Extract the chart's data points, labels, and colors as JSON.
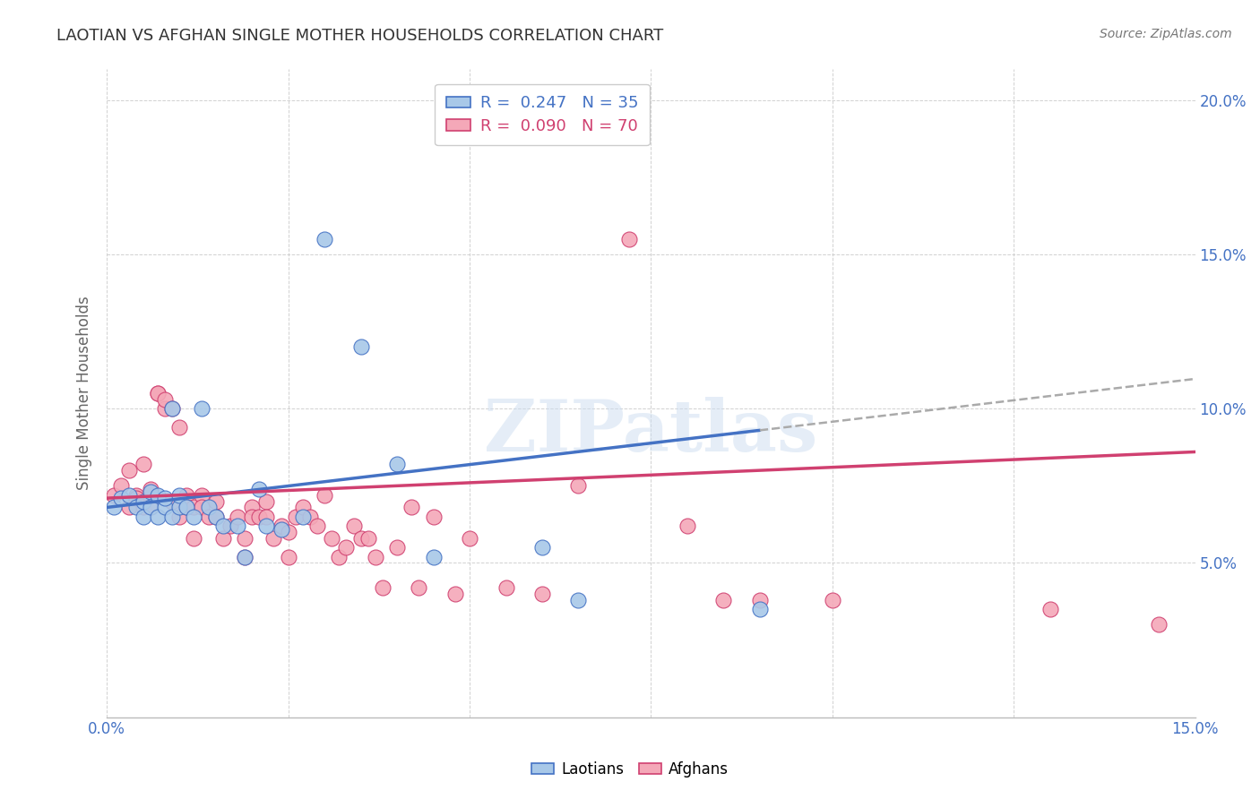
{
  "title": "LAOTIAN VS AFGHAN SINGLE MOTHER HOUSEHOLDS CORRELATION CHART",
  "source": "Source: ZipAtlas.com",
  "ylabel": "Single Mother Households",
  "xlim": [
    0.0,
    0.15
  ],
  "ylim": [
    0.0,
    0.21
  ],
  "legend_blue_R": "0.247",
  "legend_blue_N": "35",
  "legend_pink_R": "0.090",
  "legend_pink_N": "70",
  "watermark": "ZIPatlas",
  "blue_color": "#a8c8e8",
  "pink_color": "#f4a8b8",
  "blue_line_color": "#4472c4",
  "pink_line_color": "#d04070",
  "blue_scatter": [
    [
      0.001,
      0.068
    ],
    [
      0.002,
      0.071
    ],
    [
      0.003,
      0.072
    ],
    [
      0.004,
      0.068
    ],
    [
      0.005,
      0.07
    ],
    [
      0.005,
      0.065
    ],
    [
      0.006,
      0.073
    ],
    [
      0.006,
      0.068
    ],
    [
      0.007,
      0.072
    ],
    [
      0.007,
      0.065
    ],
    [
      0.008,
      0.068
    ],
    [
      0.008,
      0.071
    ],
    [
      0.009,
      0.1
    ],
    [
      0.009,
      0.065
    ],
    [
      0.01,
      0.068
    ],
    [
      0.01,
      0.072
    ],
    [
      0.011,
      0.068
    ],
    [
      0.012,
      0.065
    ],
    [
      0.013,
      0.1
    ],
    [
      0.014,
      0.068
    ],
    [
      0.015,
      0.065
    ],
    [
      0.016,
      0.062
    ],
    [
      0.018,
      0.062
    ],
    [
      0.019,
      0.052
    ],
    [
      0.021,
      0.074
    ],
    [
      0.022,
      0.062
    ],
    [
      0.024,
      0.061
    ],
    [
      0.027,
      0.065
    ],
    [
      0.03,
      0.155
    ],
    [
      0.035,
      0.12
    ],
    [
      0.04,
      0.082
    ],
    [
      0.045,
      0.052
    ],
    [
      0.06,
      0.055
    ],
    [
      0.065,
      0.038
    ],
    [
      0.09,
      0.035
    ]
  ],
  "pink_scatter": [
    [
      0.001,
      0.072
    ],
    [
      0.002,
      0.075
    ],
    [
      0.003,
      0.068
    ],
    [
      0.003,
      0.08
    ],
    [
      0.004,
      0.072
    ],
    [
      0.004,
      0.071
    ],
    [
      0.005,
      0.068
    ],
    [
      0.005,
      0.082
    ],
    [
      0.006,
      0.074
    ],
    [
      0.006,
      0.068
    ],
    [
      0.007,
      0.105
    ],
    [
      0.007,
      0.105
    ],
    [
      0.008,
      0.1
    ],
    [
      0.008,
      0.103
    ],
    [
      0.009,
      0.1
    ],
    [
      0.009,
      0.07
    ],
    [
      0.01,
      0.094
    ],
    [
      0.01,
      0.065
    ],
    [
      0.011,
      0.072
    ],
    [
      0.011,
      0.068
    ],
    [
      0.012,
      0.068
    ],
    [
      0.012,
      0.058
    ],
    [
      0.013,
      0.072
    ],
    [
      0.013,
      0.068
    ],
    [
      0.014,
      0.065
    ],
    [
      0.015,
      0.07
    ],
    [
      0.015,
      0.065
    ],
    [
      0.016,
      0.058
    ],
    [
      0.017,
      0.062
    ],
    [
      0.018,
      0.065
    ],
    [
      0.019,
      0.052
    ],
    [
      0.019,
      0.058
    ],
    [
      0.02,
      0.068
    ],
    [
      0.02,
      0.065
    ],
    [
      0.021,
      0.065
    ],
    [
      0.022,
      0.07
    ],
    [
      0.022,
      0.065
    ],
    [
      0.023,
      0.058
    ],
    [
      0.024,
      0.062
    ],
    [
      0.025,
      0.06
    ],
    [
      0.025,
      0.052
    ],
    [
      0.026,
      0.065
    ],
    [
      0.027,
      0.068
    ],
    [
      0.028,
      0.065
    ],
    [
      0.029,
      0.062
    ],
    [
      0.03,
      0.072
    ],
    [
      0.031,
      0.058
    ],
    [
      0.032,
      0.052
    ],
    [
      0.033,
      0.055
    ],
    [
      0.034,
      0.062
    ],
    [
      0.035,
      0.058
    ],
    [
      0.036,
      0.058
    ],
    [
      0.037,
      0.052
    ],
    [
      0.038,
      0.042
    ],
    [
      0.04,
      0.055
    ],
    [
      0.042,
      0.068
    ],
    [
      0.043,
      0.042
    ],
    [
      0.045,
      0.065
    ],
    [
      0.048,
      0.04
    ],
    [
      0.05,
      0.058
    ],
    [
      0.055,
      0.042
    ],
    [
      0.06,
      0.04
    ],
    [
      0.065,
      0.075
    ],
    [
      0.072,
      0.155
    ],
    [
      0.08,
      0.062
    ],
    [
      0.085,
      0.038
    ],
    [
      0.09,
      0.038
    ],
    [
      0.1,
      0.038
    ],
    [
      0.13,
      0.035
    ],
    [
      0.145,
      0.03
    ]
  ],
  "background_color": "#ffffff",
  "grid_color": "#cccccc",
  "title_color": "#333333",
  "tick_label_color": "#4472c4"
}
